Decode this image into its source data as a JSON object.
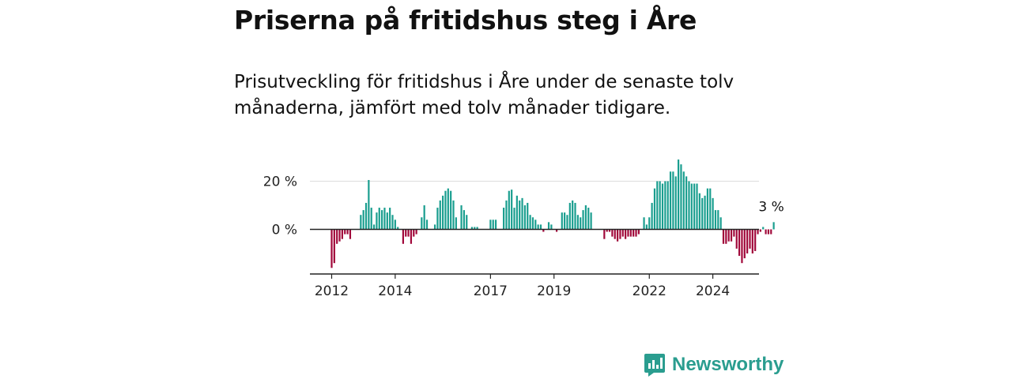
{
  "title": "Priserna på fritidshus steg i Åre",
  "subtitle": "Prisutveckling för fritidshus i Åre under de senaste tolv månaderna, jämfört med tolv månader tidigare.",
  "brand": "Newsworthy",
  "colors": {
    "positive": "#1a9e8f",
    "negative": "#a1083a",
    "brand": "#2a9d8f"
  },
  "chart_data": {
    "type": "bar",
    "x_start": "2012-01",
    "ylabel": "",
    "ylim": [
      -19,
      30
    ],
    "yticks": [
      {
        "value": 20,
        "label": "20 %"
      },
      {
        "value": 0,
        "label": "0 %"
      }
    ],
    "xticks": [
      "2012",
      "2014",
      "2017",
      "2019",
      "2022",
      "2024"
    ],
    "annotation": "3 %",
    "values": [
      -16,
      -14,
      -6,
      -5,
      -4,
      -2,
      -2,
      -4,
      0,
      0,
      0,
      6,
      8,
      11,
      20.5,
      9,
      2,
      7,
      9,
      8,
      9,
      7,
      9,
      6,
      4,
      1,
      0,
      -6,
      -3,
      -3,
      -6,
      -3,
      -2,
      0,
      5,
      10,
      4,
      0,
      0,
      2,
      9,
      12,
      14,
      16,
      17,
      16,
      12,
      5,
      0,
      10,
      8,
      6,
      0,
      1,
      1,
      1,
      0,
      0,
      0,
      0,
      4,
      4,
      4,
      0,
      0,
      9,
      12,
      16,
      16.5,
      9,
      14,
      12,
      13,
      10,
      11,
      6,
      5,
      4,
      2,
      2,
      -1,
      0,
      3,
      2,
      0,
      -1,
      0,
      7,
      7,
      6,
      11,
      12,
      11,
      6,
      5,
      8,
      10,
      9,
      7,
      0,
      0,
      0,
      0,
      -4,
      -1,
      -1,
      -3,
      -4,
      -5,
      -4,
      -3,
      -4,
      -3,
      -3,
      -3,
      -3,
      -2,
      0,
      5,
      2,
      5,
      11,
      17,
      20,
      20,
      19,
      20,
      20,
      24,
      24,
      22,
      29,
      27,
      24,
      22,
      20,
      19,
      19,
      19,
      15,
      13,
      14,
      17,
      17,
      13,
      8,
      8,
      5,
      -6,
      -6,
      -5,
      -5,
      -3,
      -8,
      -11,
      -14,
      -12,
      -10,
      -8,
      -10,
      -9,
      -2,
      -1,
      1,
      -2,
      -2,
      -2,
      3
    ]
  }
}
